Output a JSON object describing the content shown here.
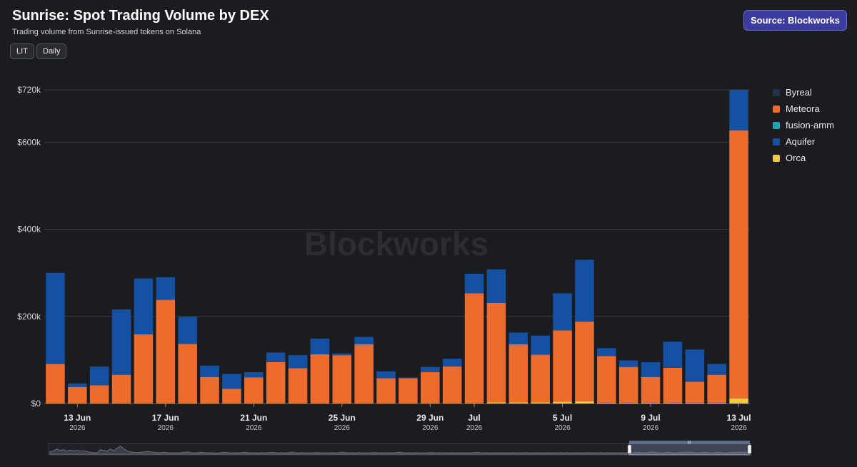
{
  "header": {
    "title": "Sunrise: Spot Trading Volume by DEX",
    "subtitle": "Trading volume from Sunrise-issued tokens on Solana",
    "token_label": "LIT",
    "interval_label": "Daily",
    "source_label": "Source: Blockworks"
  },
  "watermark": "Blockworks",
  "colors": {
    "background": "#1b1c20",
    "grid": "#3a3b40",
    "accent": "#3b3c9e"
  },
  "chart_data": {
    "type": "bar",
    "stacked": true,
    "ylim": [
      0,
      720000
    ],
    "ytick_values": [
      0,
      200000,
      400000,
      600000,
      720000
    ],
    "ytick_labels": [
      "$0",
      "$200k",
      "$400k",
      "$600k",
      "$720k"
    ],
    "x_labels": [
      {
        "index": 1,
        "label": "13 Jun",
        "sub": "2026"
      },
      {
        "index": 5,
        "label": "17 Jun",
        "sub": "2026"
      },
      {
        "index": 9,
        "label": "21 Jun",
        "sub": "2026"
      },
      {
        "index": 13,
        "label": "25 Jun",
        "sub": "2026"
      },
      {
        "index": 17,
        "label": "29 Jun",
        "sub": "2026"
      },
      {
        "index": 19,
        "label": "Jul",
        "sub": "2026"
      },
      {
        "index": 23,
        "label": "5 Jul",
        "sub": "2026"
      },
      {
        "index": 27,
        "label": "9 Jul",
        "sub": "2026"
      },
      {
        "index": 31,
        "label": "13 Jul",
        "sub": "2026"
      }
    ],
    "categories": [
      "12 Jun",
      "13 Jun",
      "14 Jun",
      "15 Jun",
      "16 Jun",
      "17 Jun",
      "18 Jun",
      "19 Jun",
      "20 Jun",
      "21 Jun",
      "22 Jun",
      "23 Jun",
      "24 Jun",
      "25 Jun",
      "26 Jun",
      "27 Jun",
      "28 Jun",
      "29 Jun",
      "30 Jun",
      "1 Jul",
      "2 Jul",
      "3 Jul",
      "4 Jul",
      "5 Jul",
      "6 Jul",
      "7 Jul",
      "8 Jul",
      "9 Jul",
      "10 Jul",
      "11 Jul",
      "12 Jul",
      "13 Jul"
    ],
    "legend_position": "right",
    "series": [
      {
        "name": "Byreal",
        "color": "#22334a",
        "values": [
          0,
          0,
          0,
          0,
          0,
          0,
          0,
          0,
          0,
          0,
          0,
          0,
          0,
          0,
          0,
          0,
          0,
          0,
          0,
          0,
          0,
          0,
          0,
          0,
          0,
          0,
          0,
          0,
          0,
          0,
          0,
          0
        ]
      },
      {
        "name": "fusion-amm",
        "color": "#1fa3b0",
        "values": [
          0,
          0,
          0,
          0,
          0,
          0,
          0,
          0,
          0,
          0,
          0,
          0,
          0,
          0,
          0,
          0,
          0,
          0,
          0,
          0,
          0,
          0,
          0,
          0,
          0,
          0,
          0,
          0,
          0,
          0,
          0,
          0
        ]
      },
      {
        "name": "Orca",
        "color": "#f1c84b",
        "values": [
          1000,
          1000,
          1000,
          1000,
          1000,
          1000,
          1000,
          1000,
          1000,
          1000,
          1000,
          1000,
          1000,
          1000,
          1000,
          1000,
          1000,
          1000,
          1000,
          1000,
          3000,
          3000,
          3000,
          4000,
          5000,
          2000,
          2000,
          2000,
          2000,
          2000,
          2000,
          12000
        ]
      },
      {
        "name": "Meteora",
        "color": "#ec6b2d",
        "values": [
          90000,
          37000,
          41000,
          65000,
          158000,
          237000,
          136000,
          60000,
          33000,
          59000,
          94000,
          80000,
          112000,
          110000,
          135000,
          57000,
          57000,
          71000,
          84000,
          252000,
          228000,
          133000,
          109000,
          164000,
          183000,
          107000,
          82000,
          59000,
          80000,
          48000,
          64000,
          615000
        ]
      },
      {
        "name": "Aquifer",
        "color": "#1551a3",
        "values": [
          209000,
          8000,
          43000,
          150000,
          128000,
          52000,
          62000,
          26000,
          34000,
          12000,
          22000,
          30000,
          36000,
          4000,
          17000,
          16000,
          2000,
          12000,
          18000,
          45000,
          77000,
          27000,
          44000,
          85000,
          142000,
          18000,
          15000,
          34000,
          60000,
          74000,
          25000,
          93000
        ]
      }
    ]
  },
  "legend": [
    {
      "name": "Byreal",
      "color": "#22334a"
    },
    {
      "name": "Meteora",
      "color": "#ec6b2d"
    },
    {
      "name": "fusion-amm",
      "color": "#1fa3b0"
    },
    {
      "name": "Aquifer",
      "color": "#1551a3"
    },
    {
      "name": "Orca",
      "color": "#f1c84b"
    }
  ],
  "navigator": {
    "history": [
      6,
      9,
      14,
      10,
      12,
      8,
      11,
      9,
      10,
      8,
      9,
      7,
      5,
      4,
      3,
      12,
      10,
      8,
      14,
      9,
      16,
      22,
      14,
      9,
      6,
      5,
      4,
      5,
      6,
      7,
      6,
      5,
      4,
      4,
      5,
      4,
      3,
      4,
      3,
      4,
      5,
      6,
      4,
      3,
      4,
      5,
      4,
      3,
      4,
      3,
      3,
      4,
      5,
      4,
      3,
      4,
      3,
      4,
      5,
      4,
      3,
      4,
      3,
      4,
      3,
      4,
      5,
      4,
      3,
      4,
      3,
      4,
      5,
      4,
      3,
      4,
      3,
      4,
      3,
      4,
      4,
      3,
      4,
      3,
      4,
      3,
      4,
      5,
      4,
      3,
      4,
      3,
      4,
      3,
      4,
      3,
      4,
      4,
      3,
      4,
      3,
      4,
      3,
      4,
      5,
      4,
      3,
      4,
      3,
      4,
      3,
      4,
      3,
      4,
      4,
      3,
      4,
      3,
      4,
      3,
      4,
      3,
      4,
      3,
      4,
      3,
      4,
      5,
      4,
      3,
      4,
      3,
      4,
      3,
      4,
      3,
      4,
      3,
      4,
      3,
      4,
      3,
      4,
      3,
      4,
      3,
      4,
      3,
      4,
      3,
      4,
      3,
      4,
      3,
      4,
      3,
      4,
      3,
      4,
      3,
      4,
      3,
      4,
      3,
      4,
      3,
      4,
      3,
      4,
      3,
      4,
      3,
      4,
      3,
      4,
      5,
      4,
      3,
      4,
      6,
      5,
      4,
      3,
      4,
      5,
      4,
      3,
      4,
      5,
      4,
      6,
      5,
      4,
      3,
      4,
      5,
      4,
      3,
      4,
      5,
      4,
      3,
      4,
      5,
      4,
      6,
      5,
      4,
      8
    ]
  }
}
